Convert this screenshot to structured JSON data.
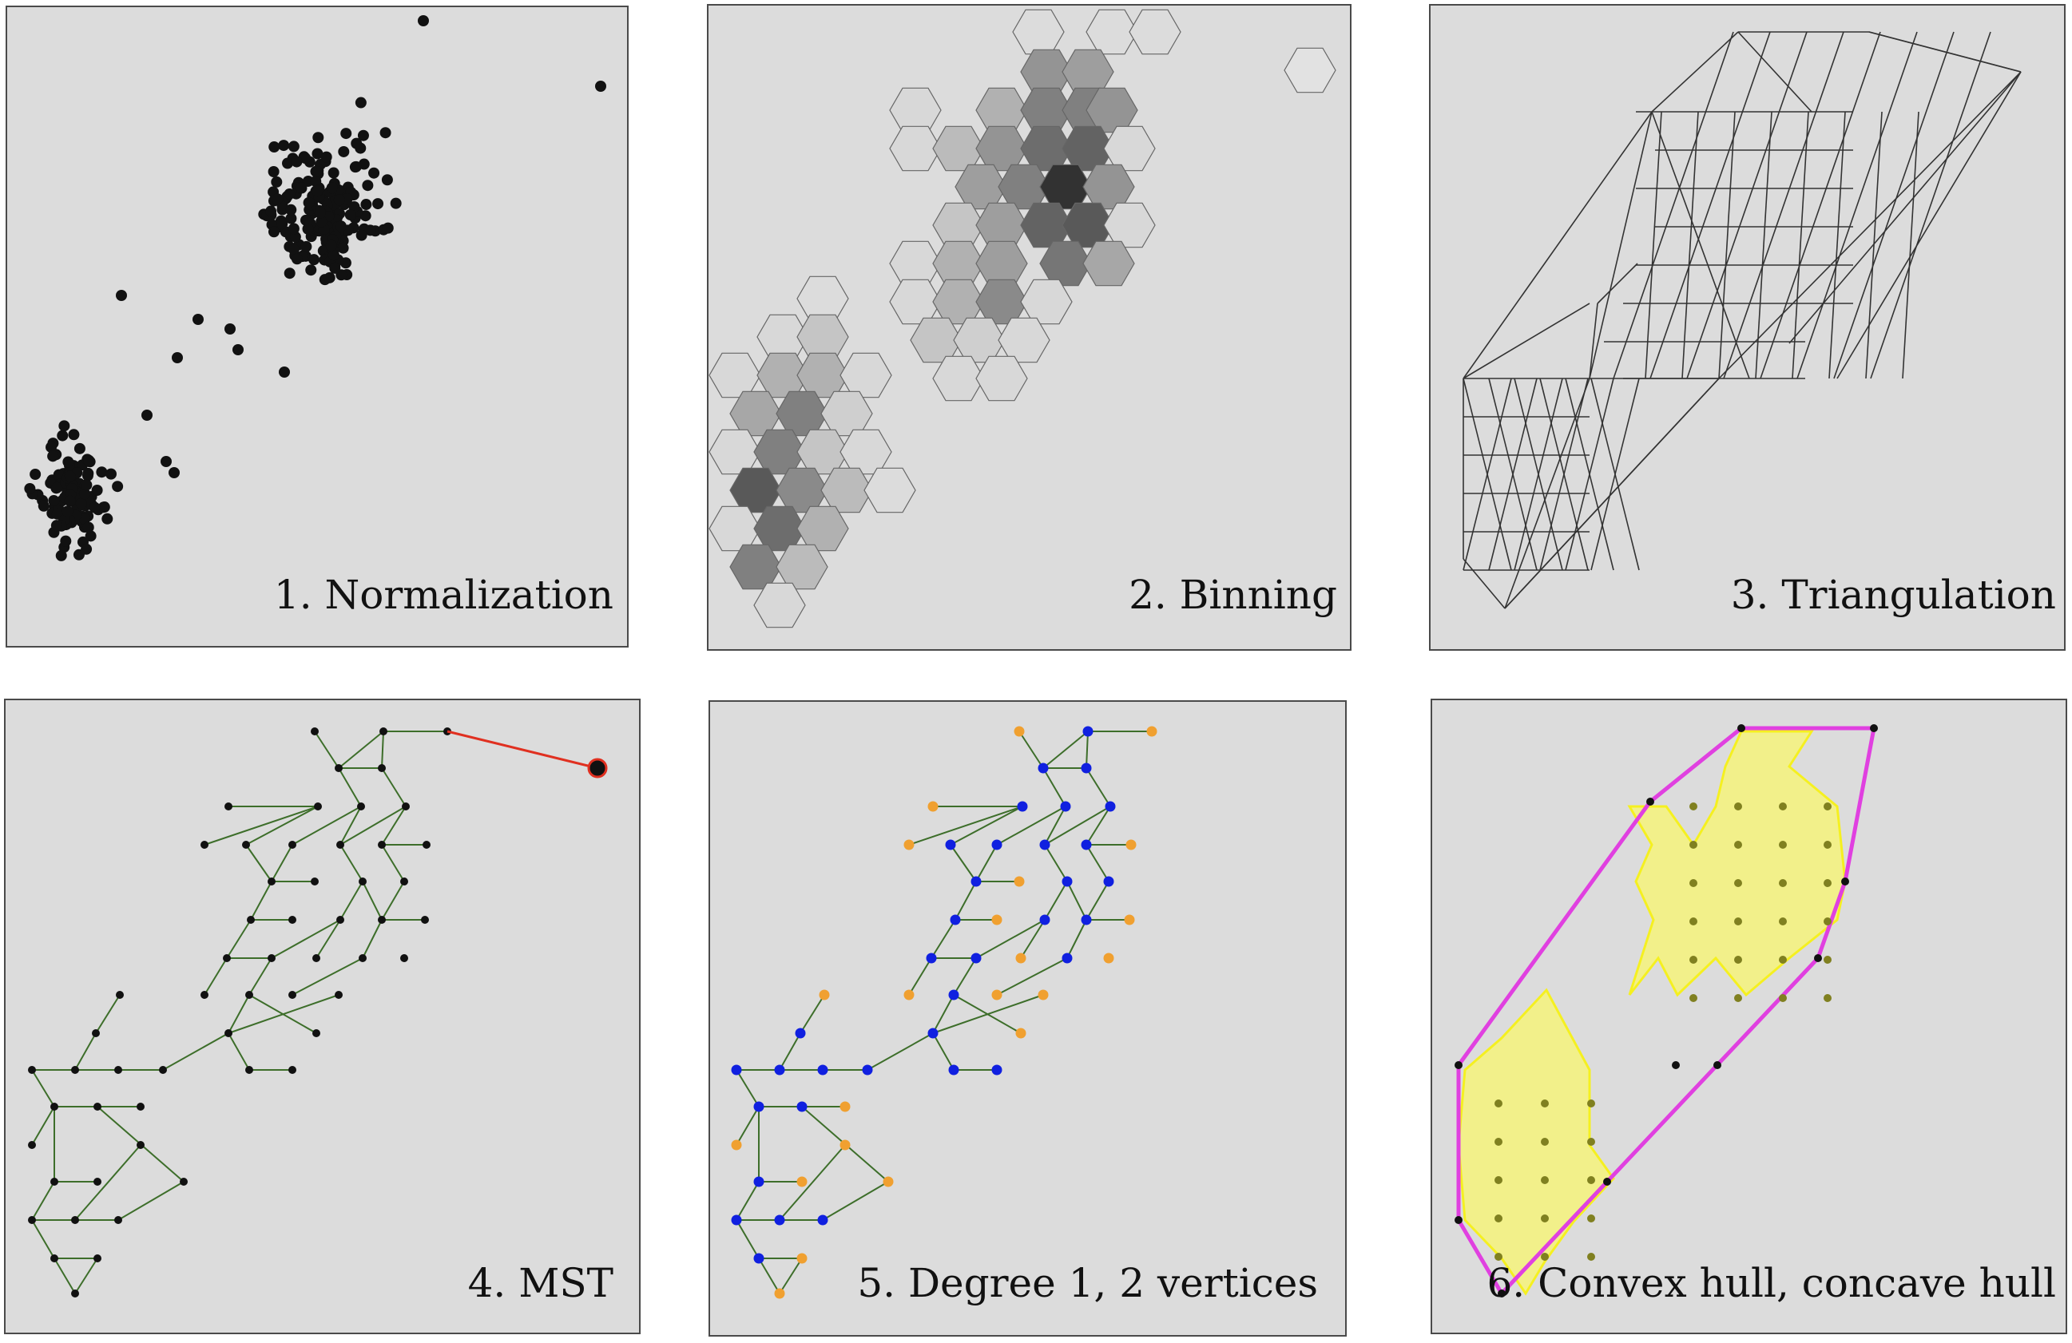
{
  "figure": {
    "panels": [
      {
        "id": "p1",
        "caption": "1. Normalization"
      },
      {
        "id": "p2",
        "caption": "2. Binning"
      },
      {
        "id": "p3",
        "caption": "3. Triangulation"
      },
      {
        "id": "p4",
        "caption": "4. MST"
      },
      {
        "id": "p5",
        "caption": "5. Degree 1, 2 vertices"
      },
      {
        "id": "p6",
        "caption": "6. Convex hull, concave hull"
      }
    ]
  },
  "colors": {
    "panel_bg": "#dcdcdc",
    "point": "#111111",
    "hex_light": "#ececec",
    "hex_dark": "#2b2b2b",
    "tri_line": "#333333",
    "mst_edge": "#3d6e2a",
    "outlier_edge": "#e03020",
    "degree1": "#f0a030",
    "degree2": "#1020e0",
    "convex_hull": "#e040e0",
    "concave_fill": "#f2f08a",
    "concave_stroke": "#f5f020"
  }
}
